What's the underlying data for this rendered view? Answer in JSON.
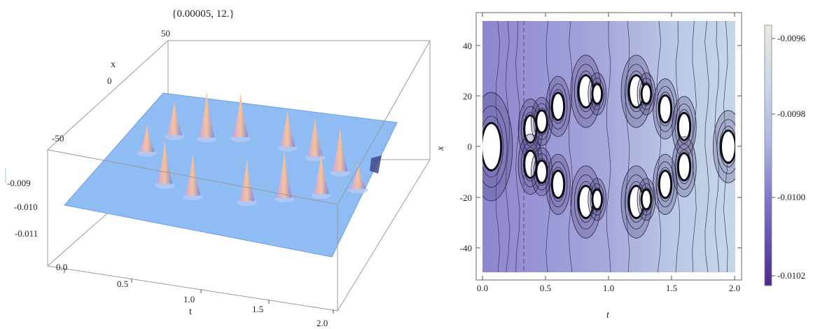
{
  "chart_data": [
    {
      "type": "surface3d",
      "title": "{0.00005, 12.}",
      "xlabel": "t",
      "ylabel": "x",
      "t_ticks": [
        "0.0",
        "0.5",
        "1.0",
        "1.5",
        "2.0"
      ],
      "x_ticks": [
        "50",
        "0",
        "-50"
      ],
      "z_ticks": [
        "-0.009",
        "-0.010",
        "-0.011"
      ],
      "t_range": [
        0,
        2
      ],
      "x_range": [
        -50,
        50
      ],
      "z_range": [
        -0.0115,
        -0.0085
      ],
      "base_level": -0.0102,
      "surface_color": "#8fbcf2",
      "peak_color": "#f6c39a",
      "peaks": [
        {
          "t": 0.25,
          "x": 2,
          "h": 0.55
        },
        {
          "t": 0.35,
          "x": 18,
          "h": 0.7
        },
        {
          "t": 0.55,
          "x": -20,
          "h": 0.9
        },
        {
          "t": 0.6,
          "x": 20,
          "h": 0.95
        },
        {
          "t": 0.8,
          "x": -25,
          "h": 0.85
        },
        {
          "t": 0.85,
          "x": 24,
          "h": 0.9
        },
        {
          "t": 1.2,
          "x": -22,
          "h": 0.85
        },
        {
          "t": 1.25,
          "x": 22,
          "h": 0.75
        },
        {
          "t": 1.45,
          "x": -15,
          "h": 0.95
        },
        {
          "t": 1.5,
          "x": 18,
          "h": 0.8
        },
        {
          "t": 1.7,
          "x": -8,
          "h": 0.85
        },
        {
          "t": 1.75,
          "x": 10,
          "h": 0.9
        },
        {
          "t": 1.95,
          "x": 0,
          "h": 0.5
        }
      ]
    },
    {
      "type": "contour",
      "xlabel": "t",
      "ylabel": "x",
      "x_ticks": [
        "0.0",
        "0.5",
        "1.0",
        "1.5",
        "2.0"
      ],
      "y_ticks": [
        "40",
        "20",
        "0",
        "-20",
        "-40"
      ],
      "x_range": [
        0,
        2
      ],
      "y_range": [
        -50,
        50
      ],
      "colorbar_ticks": [
        "-0.0096",
        "-0.0098",
        "-0.0100",
        "-0.0102"
      ],
      "colorbar_range": [
        -0.01025,
        -0.00955
      ],
      "colormap": [
        "#4a2a8e",
        "#7a6ec8",
        "#aab6e0",
        "#c6d6ea",
        "#ece8de"
      ],
      "blobs": [
        {
          "t": 0.07,
          "x": 0,
          "rt": 0.07,
          "rx": 9
        },
        {
          "t": 0.38,
          "x": 7,
          "rt": 0.04,
          "rx": 5
        },
        {
          "t": 0.38,
          "x": -7,
          "rt": 0.04,
          "rx": 5
        },
        {
          "t": 0.47,
          "x": 10,
          "rt": 0.035,
          "rx": 4
        },
        {
          "t": 0.47,
          "x": -10,
          "rt": 0.035,
          "rx": 4
        },
        {
          "t": 0.6,
          "x": 16,
          "rt": 0.04,
          "rx": 5
        },
        {
          "t": 0.6,
          "x": -15,
          "rt": 0.04,
          "rx": 5
        },
        {
          "t": 0.82,
          "x": 22,
          "rt": 0.05,
          "rx": 6
        },
        {
          "t": 0.82,
          "x": -22,
          "rt": 0.05,
          "rx": 6
        },
        {
          "t": 0.91,
          "x": 21,
          "rt": 0.03,
          "rx": 3.5
        },
        {
          "t": 0.91,
          "x": -21,
          "rt": 0.03,
          "rx": 3.5
        },
        {
          "t": 1.22,
          "x": 22,
          "rt": 0.05,
          "rx": 6
        },
        {
          "t": 1.22,
          "x": -22,
          "rt": 0.05,
          "rx": 6
        },
        {
          "t": 1.3,
          "x": 21,
          "rt": 0.03,
          "rx": 3.5
        },
        {
          "t": 1.3,
          "x": -21,
          "rt": 0.03,
          "rx": 3.5
        },
        {
          "t": 1.45,
          "x": 15,
          "rt": 0.04,
          "rx": 5
        },
        {
          "t": 1.45,
          "x": -15,
          "rt": 0.04,
          "rx": 5
        },
        {
          "t": 1.6,
          "x": 8,
          "rt": 0.04,
          "rx": 5
        },
        {
          "t": 1.6,
          "x": -8,
          "rt": 0.04,
          "rx": 5
        },
        {
          "t": 1.95,
          "x": 0,
          "rt": 0.05,
          "rx": 6
        }
      ]
    }
  ]
}
